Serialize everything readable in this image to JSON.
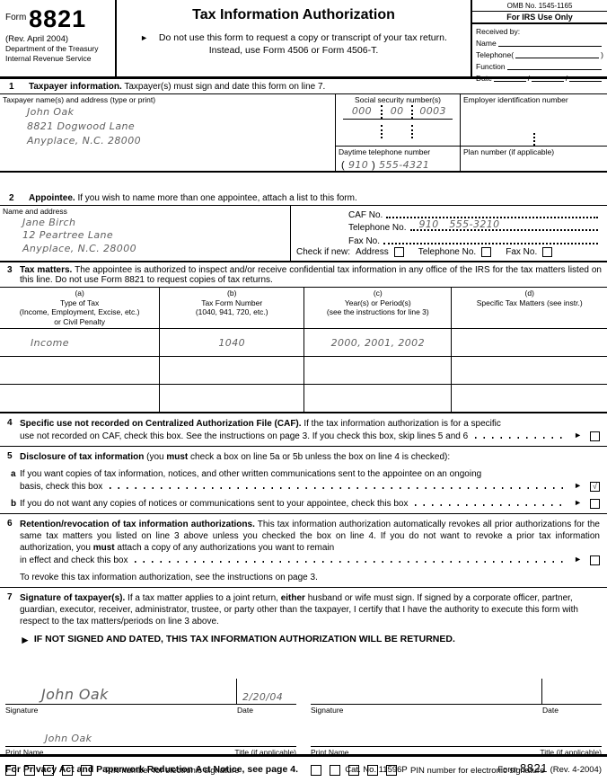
{
  "icons": {
    "pointer": "►"
  },
  "colors": {
    "ink": "#000000",
    "handwriting": "#606060"
  },
  "header": {
    "form_word": "Form",
    "form_number": "8821",
    "revision": "(Rev. April 2004)",
    "agency1": "Department of the Treasury",
    "agency2": "Internal Revenue Service",
    "title": "Tax Information Authorization",
    "instr1": "Do not use this form to request a copy or transcript of your tax return.",
    "instr2": "Instead, use Form 4506 or Form 4506-T.",
    "omb": "OMB No. 1545-1165",
    "irs_use": "For IRS Use Only",
    "received_by": "Received by:",
    "name_label": "Name",
    "telephone_label": "Telephone",
    "paren_open": "(",
    "paren_close": ")",
    "function_label": "Function",
    "date_label": "Date",
    "slash": "/"
  },
  "line1": {
    "num": "1",
    "head_bold": "Taxpayer information.",
    "head_rest": "Taxpayer(s) must sign and date this form on line 7.",
    "name_addr_label": "Taxpayer name(s) and address (type or print)",
    "name": "John Oak",
    "addr1": "8821 Dogwood Lane",
    "addr2": "Anyplace, N.C. 28000",
    "ssn_label": "Social security number(s)",
    "ssn1": "000",
    "ssn2": "00",
    "ssn3": "0003",
    "ein_label": "Employer identification number",
    "phone_label": "Daytime telephone number",
    "phone_area": "910",
    "phone_num": "555-4321",
    "plan_label": "Plan number (if applicable)"
  },
  "line2": {
    "num": "2",
    "head_bold": "Appointee.",
    "head_rest": "If you wish to name more than one appointee, attach a list to this form.",
    "name_addr_label": "Name and address",
    "name": "Jane Birch",
    "addr1": "12 Peartree Lane",
    "addr2": "Anyplace, N.C. 28000",
    "caf_label": "CAF No.",
    "tel_label": "Telephone No.",
    "tel_value": "910   555-3210",
    "fax_label": "Fax No.",
    "check_new": "Check if new:",
    "chk_address": "Address",
    "chk_telephone": "Telephone No.",
    "chk_fax": "Fax No.",
    "chk_address_glyph": "",
    "chk_telephone_glyph": "",
    "chk_fax_glyph": ""
  },
  "line3": {
    "num": "3",
    "head_bold": "Tax matters.",
    "head_rest": " The appointee is authorized to inspect and/or receive confidential tax information in any office of the IRS for the tax matters listed on this line. Do not use Form 8821 to request copies of tax returns.",
    "table": {
      "col_a": {
        "tag": "(a)",
        "l1": "Type of Tax",
        "l2": "(Income, Employment, Excise, etc.)",
        "l3": "or Civil Penalty"
      },
      "col_b": {
        "tag": "(b)",
        "l1": "Tax Form Number",
        "l2": "(1040, 941, 720, etc.)"
      },
      "col_c": {
        "tag": "(c)",
        "l1": "Year(s) or Period(s)",
        "l2": "(see the instructions for line 3)"
      },
      "col_d": {
        "tag": "(d)",
        "l1": "Specific Tax Matters (see instr.)"
      },
      "rows": [
        {
          "a": "Income",
          "b": "1040",
          "c": "2000, 2001, 2002",
          "d": ""
        },
        {
          "a": "",
          "b": "",
          "c": "",
          "d": ""
        },
        {
          "a": "",
          "b": "",
          "c": "",
          "d": ""
        }
      ]
    }
  },
  "line4": {
    "num": "4",
    "head_bold": "Specific use not recorded on Centralized Authorization File (CAF).",
    "text1": " If the tax information authorization is for a specific",
    "leader_text": "use not recorded on CAF, check this box. See the instructions on page 3. If you check this box, skip lines 5 and 6",
    "check_glyph": ""
  },
  "line5": {
    "num": "5",
    "head_bold": "Disclosure of tax information",
    "head_rest1": " (you ",
    "head_rest_bold": "must",
    "head_rest2": " check a box on line 5a or 5b unless the box on line 4 is checked):",
    "a_label": "a",
    "a_text1": "If you want copies of tax information, notices, and other written communications sent to the appointee on an ongoing",
    "a_leader_text": "basis, check this box",
    "a_check_glyph": "√",
    "b_label": "b",
    "b_leader_text": "If you do not want any copies of notices or communications sent to your appointee, check this box",
    "b_check_glyph": ""
  },
  "line6": {
    "num": "6",
    "head_bold": "Retention/revocation of tax information authorizations.",
    "text1": " This tax information authorization automatically revokes all prior authorizations for the same tax matters you listed on line 3 above unless you checked the box on line 4. If you do not want to revoke a prior tax information authorization, you ",
    "text_bold": "must",
    "text2": " attach a copy of any authorizations you want to remain",
    "leader_text": "in effect and check this box",
    "check_glyph": "",
    "note": "To revoke this tax information authorization, see the instructions on page 3."
  },
  "line7": {
    "num": "7",
    "head_bold": "Signature of taxpayer(s).",
    "text1": " If a tax matter applies to a joint return, ",
    "text_bold": "either",
    "text2": " husband or wife must sign. If signed by a corporate officer, partner, guardian, executor, receiver, administrator, trustee, or party other than the taxpayer, I certify that I have the authority to execute this form with respect to the tax matters/periods on line 3 above.",
    "warning": "IF NOT SIGNED AND DATED, THIS TAX INFORMATION AUTHORIZATION WILL BE RETURNED."
  },
  "signature": {
    "signature_label": "Signature",
    "date_label": "Date",
    "print_name_label": "Print Name",
    "title_label": "Title (if applicable)",
    "pin_label": "PIN number for electronic signature",
    "left": {
      "signature": "John Oak",
      "date": "2/20/04",
      "print_name": "John Oak"
    },
    "right": {
      "signature": "",
      "date": "",
      "print_name": ""
    }
  },
  "footer": {
    "privacy": "For Privacy Act and Paperwork Reduction Act Notice, see page 4.",
    "cat": "Cat. No. 11596P",
    "form_word": "Form",
    "form_number": "8821",
    "revision": "(Rev. 4-2004)"
  }
}
